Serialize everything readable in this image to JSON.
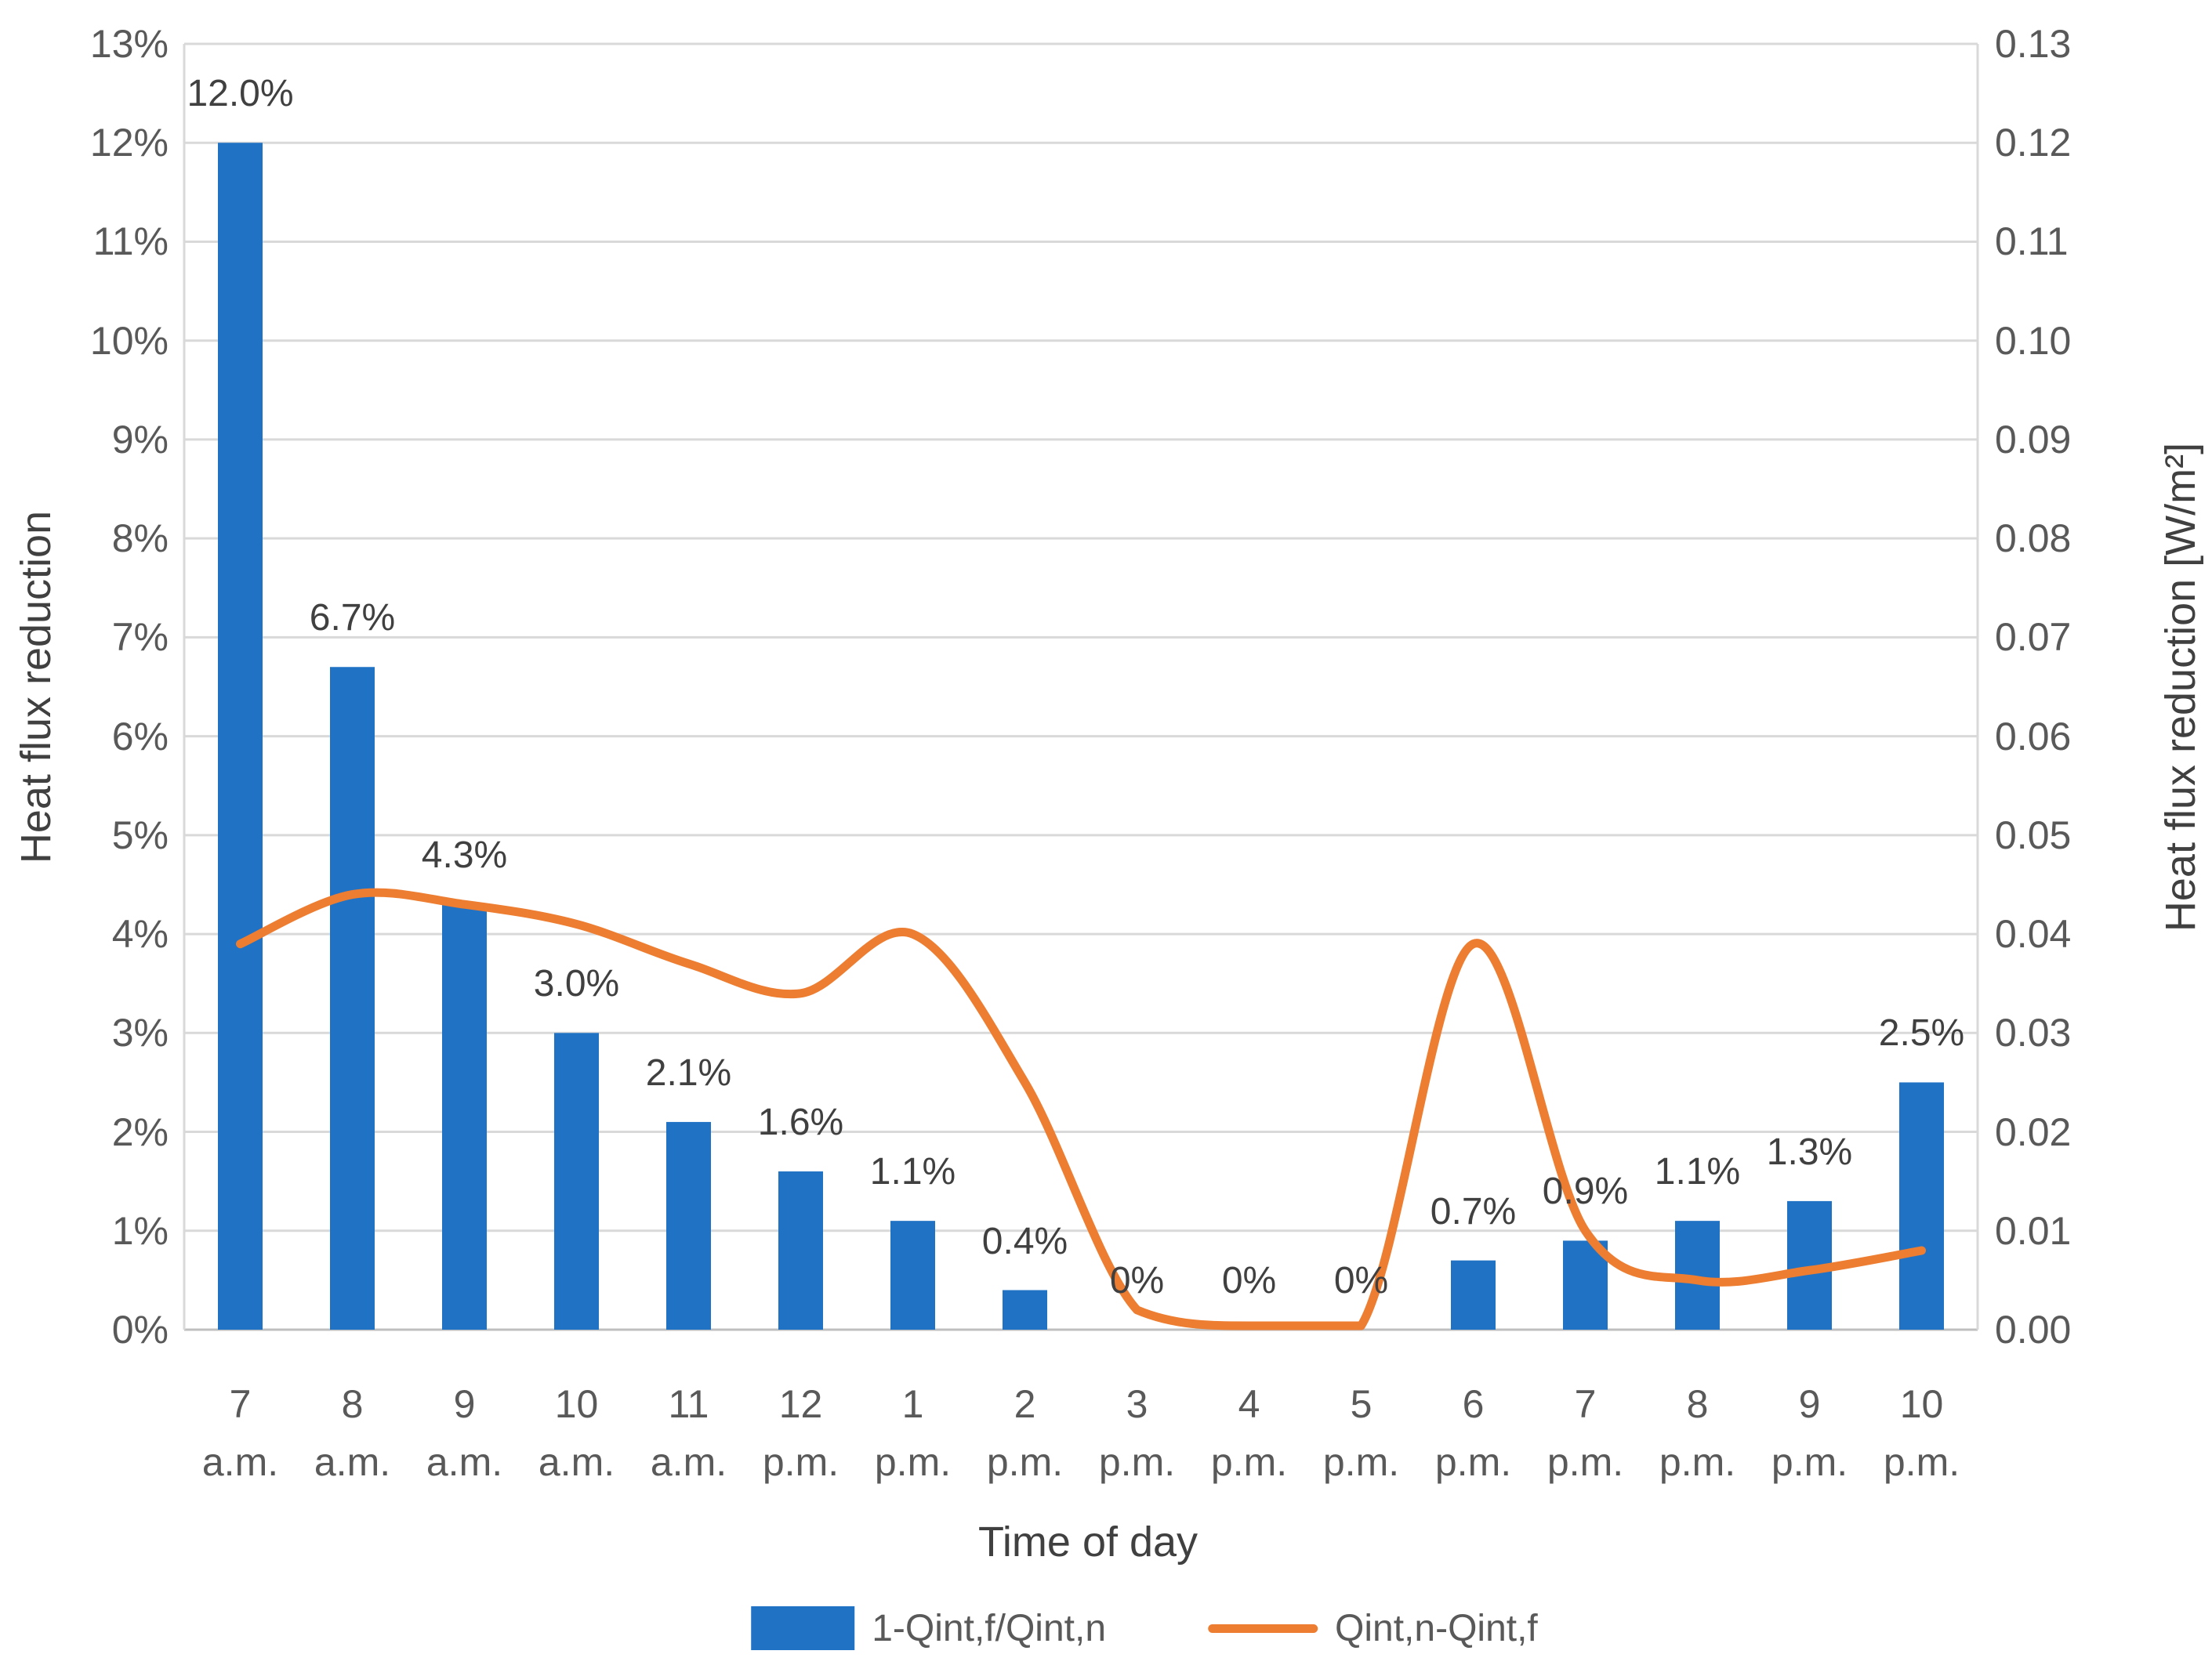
{
  "chart_data": {
    "type": "combo-bar-line",
    "categories": [
      {
        "hour": "7",
        "period": "a.m."
      },
      {
        "hour": "8",
        "period": "a.m."
      },
      {
        "hour": "9",
        "period": "a.m."
      },
      {
        "hour": "10",
        "period": "a.m."
      },
      {
        "hour": "11",
        "period": "a.m."
      },
      {
        "hour": "12",
        "period": "p.m."
      },
      {
        "hour": "1",
        "period": "p.m."
      },
      {
        "hour": "2",
        "period": "p.m."
      },
      {
        "hour": "3",
        "period": "p.m."
      },
      {
        "hour": "4",
        "period": "p.m."
      },
      {
        "hour": "5",
        "period": "p.m."
      },
      {
        "hour": "6",
        "period": "p.m."
      },
      {
        "hour": "7",
        "period": "p.m."
      },
      {
        "hour": "8",
        "period": "p.m."
      },
      {
        "hour": "9",
        "period": "p.m."
      },
      {
        "hour": "10",
        "period": "p.m."
      }
    ],
    "series": [
      {
        "name": "1-Qint,f/Qint,n",
        "type": "bar",
        "axis": "left",
        "values_percent": [
          12.0,
          6.7,
          4.3,
          3.0,
          2.1,
          1.6,
          1.1,
          0.4,
          0,
          0,
          0,
          0.7,
          0.9,
          1.1,
          1.3,
          2.5
        ],
        "data_labels": [
          "12.0%",
          "6.7%",
          "4.3%",
          "3.0%",
          "2.1%",
          "1.6%",
          "1.1%",
          "0.4%",
          "0%",
          "0%",
          "0%",
          "0.7%",
          "0.9%",
          "1.1%",
          "1.3%",
          "2.5%"
        ]
      },
      {
        "name": "Qint,n-Qint,f",
        "type": "line",
        "axis": "right",
        "values_wm2": [
          0.039,
          0.044,
          0.043,
          0.041,
          0.037,
          0.034,
          0.04,
          0.025,
          0.002,
          0.0,
          0.0,
          0.039,
          0.01,
          0.005,
          0.006,
          0.008
        ]
      }
    ],
    "left_axis": {
      "title": "Heat flux reduction",
      "min": 0,
      "max": 13,
      "unit": "%",
      "ticks": [
        "0%",
        "1%",
        "2%",
        "3%",
        "4%",
        "5%",
        "6%",
        "7%",
        "8%",
        "9%",
        "10%",
        "11%",
        "12%",
        "13%"
      ]
    },
    "right_axis": {
      "title": "Heat flux reduction [W/m²]",
      "min": 0,
      "max": 0.13,
      "ticks": [
        "0.00",
        "0.01",
        "0.02",
        "0.03",
        "0.04",
        "0.05",
        "0.06",
        "0.07",
        "0.08",
        "0.09",
        "0.10",
        "0.11",
        "0.12",
        "0.13"
      ]
    },
    "x_axis": {
      "title": "Time of day"
    },
    "legend": {
      "items": [
        {
          "label": "1-Qint,f/Qint,n",
          "swatch": "bar"
        },
        {
          "label": "Qint,n-Qint,f",
          "swatch": "line"
        }
      ]
    },
    "grid": true
  },
  "colors": {
    "bar": "#2072C4",
    "line": "#ED7D31",
    "gridline": "#D9D9D9",
    "axis_line": "#BFBFBF",
    "tick_text": "#595959",
    "label_text": "#404040",
    "background": "#FFFFFF"
  }
}
